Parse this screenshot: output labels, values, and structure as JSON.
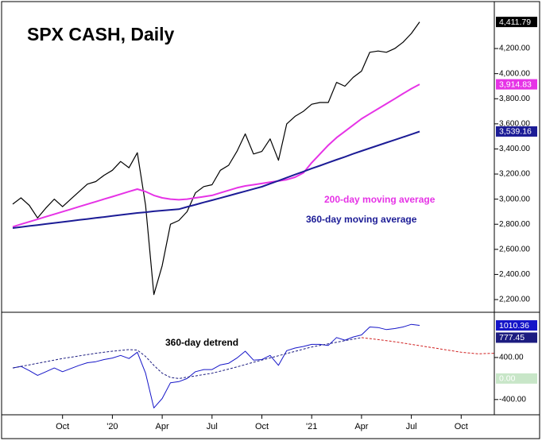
{
  "chart_data": [
    {
      "type": "line",
      "title": "SPX CASH, Daily",
      "ylim": [
        2105,
        4555
      ],
      "yticks": [
        {
          "value": 2200,
          "label": "2,200.00"
        },
        {
          "value": 2400,
          "label": "2,400.00"
        },
        {
          "value": 2600,
          "label": "2,600.00"
        },
        {
          "value": 2800,
          "label": "2,800.00"
        },
        {
          "value": 3000,
          "label": "3,000.00"
        },
        {
          "value": 3200,
          "label": "3,200.00"
        },
        {
          "value": 3400,
          "label": "3,400.00"
        },
        {
          "value": 3600,
          "label": "3,600.00"
        },
        {
          "value": 3800,
          "label": "3,800.00"
        },
        {
          "value": 4000,
          "label": "4,000.00"
        },
        {
          "value": 4200,
          "label": "4,200.00"
        }
      ],
      "series": [
        {
          "color": "#000000",
          "values": [
            2960,
            3010,
            2950,
            2850,
            2930,
            3000,
            2940,
            3000,
            3060,
            3120,
            3140,
            3190,
            3230,
            3300,
            3250,
            3370,
            2950,
            2240,
            2470,
            2800,
            2830,
            2900,
            3050,
            3100,
            3115,
            3230,
            3270,
            3380,
            3520,
            3360,
            3380,
            3480,
            3310,
            3600,
            3660,
            3700,
            3756,
            3770,
            3770,
            3930,
            3900,
            3970,
            4020,
            4170,
            4180,
            4170,
            4200,
            4250,
            4320,
            4411.79,
            null,
            null,
            null,
            null,
            null,
            null,
            null,
            null,
            null
          ]
        },
        {
          "name": "200-day moving average",
          "color": "#e633e6",
          "values": [
            2780,
            2800,
            2820,
            2840,
            2860,
            2880,
            2900,
            2920,
            2940,
            2960,
            2980,
            3000,
            3020,
            3040,
            3060,
            3080,
            3060,
            3030,
            3010,
            3000,
            2995,
            3000,
            3010,
            3020,
            3030,
            3050,
            3070,
            3090,
            3105,
            3115,
            3125,
            3135,
            3145,
            3155,
            3175,
            3210,
            3290,
            3360,
            3430,
            3490,
            3540,
            3590,
            3640,
            3680,
            3720,
            3760,
            3800,
            3840,
            3880,
            3914.83,
            null,
            null,
            null,
            null,
            null,
            null,
            null,
            null,
            null
          ]
        },
        {
          "name": "360-day moving average",
          "color": "#1c1c96",
          "values": [
            2770,
            2778,
            2786,
            2794,
            2802,
            2810,
            2818,
            2826,
            2834,
            2842,
            2850,
            2858,
            2866,
            2874,
            2882,
            2890,
            2896,
            2903,
            2909,
            2915,
            2920,
            2938,
            2956,
            2974,
            2991,
            3009,
            3027,
            3045,
            3063,
            3081,
            3099,
            3123,
            3147,
            3171,
            3196,
            3220,
            3244,
            3267,
            3291,
            3314,
            3337,
            3361,
            3384,
            3406,
            3428,
            3450,
            3472,
            3494,
            3516,
            3539.16,
            null,
            null,
            null,
            null,
            null,
            null,
            null,
            null,
            null
          ]
        }
      ],
      "axis_markers": [
        {
          "value": 4411.79,
          "label": "4,411.79",
          "color": "#000000",
          "text_color": "#ffffff"
        },
        {
          "value": 3914.83,
          "label": "3,914.83",
          "color": "#e633e6",
          "text_color": "#ffffff"
        },
        {
          "value": 3539.16,
          "label": "3,539.16",
          "color": "#1c1c96",
          "text_color": "#ffffff"
        }
      ]
    },
    {
      "type": "line",
      "categories": [
        null,
        null,
        null,
        null,
        null,
        null,
        "Oct",
        null,
        null,
        null,
        null,
        null,
        "'20",
        null,
        null,
        null,
        null,
        null,
        "Apr",
        null,
        null,
        null,
        null,
        null,
        "Jul",
        null,
        null,
        null,
        null,
        null,
        "Oct",
        null,
        null,
        null,
        null,
        null,
        "'21",
        null,
        null,
        null,
        null,
        null,
        "Apr",
        null,
        null,
        null,
        null,
        null,
        "Jul",
        null,
        null,
        null,
        null,
        null,
        "Oct",
        null,
        null,
        null,
        null
      ],
      "ylim": [
        -690,
        1230
      ],
      "yticks": [
        {
          "value": 400,
          "label": "400.00"
        },
        {
          "value": -400,
          "label": "-400.00"
        }
      ],
      "series": [
        {
          "name": "360-day detrend",
          "color": "#1515c8",
          "values": [
            200,
            230,
            150,
            60,
            130,
            200,
            130,
            190,
            250,
            300,
            320,
            360,
            390,
            440,
            380,
            500,
            100,
            -560,
            -380,
            -80,
            -60,
            0,
            130,
            170,
            170,
            260,
            290,
            390,
            520,
            350,
            360,
            440,
            250,
            530,
            580,
            610,
            650,
            650,
            630,
            780,
            730,
            790,
            830,
            980,
            970,
            930,
            950,
            980,
            1030,
            1010.36,
            null,
            null,
            null,
            null,
            null,
            null,
            null,
            null,
            null
          ]
        },
        {
          "color": "#1c1c80",
          "dashed": true,
          "values": [
            200,
            230,
            260,
            290,
            320,
            350,
            380,
            405,
            430,
            455,
            480,
            500,
            520,
            535,
            550,
            540,
            420,
            250,
            100,
            20,
            0,
            25,
            50,
            75,
            100,
            140,
            180,
            220,
            265,
            310,
            350,
            392,
            433,
            475,
            517,
            558,
            600,
            630,
            660,
            690,
            720,
            750,
            777.45,
            null,
            null,
            null,
            null,
            null,
            null,
            null,
            null,
            null,
            null,
            null,
            null,
            null,
            null,
            null,
            null
          ]
        },
        {
          "color": "#d02020",
          "dashed": true,
          "values": [
            null,
            null,
            null,
            null,
            null,
            null,
            null,
            null,
            null,
            null,
            null,
            null,
            null,
            null,
            null,
            null,
            null,
            null,
            null,
            null,
            null,
            null,
            null,
            null,
            null,
            null,
            null,
            null,
            null,
            null,
            null,
            null,
            null,
            null,
            null,
            null,
            null,
            null,
            null,
            null,
            null,
            null,
            777.45,
            760,
            740,
            720,
            700,
            675,
            650,
            625,
            600,
            575,
            550,
            525,
            500,
            485,
            470,
            475,
            480
          ]
        }
      ],
      "axis_markers": [
        {
          "value": 1010.36,
          "label": "1010.36",
          "color": "#1515c8",
          "text_color": "#ffffff"
        },
        {
          "value": 777.45,
          "label": "777.45",
          "color": "#1c1c80",
          "text_color": "#ffffff"
        },
        {
          "value": 0,
          "label": "0.00",
          "color": "#c8e6c8",
          "text_color": "#ffffff"
        }
      ]
    }
  ]
}
